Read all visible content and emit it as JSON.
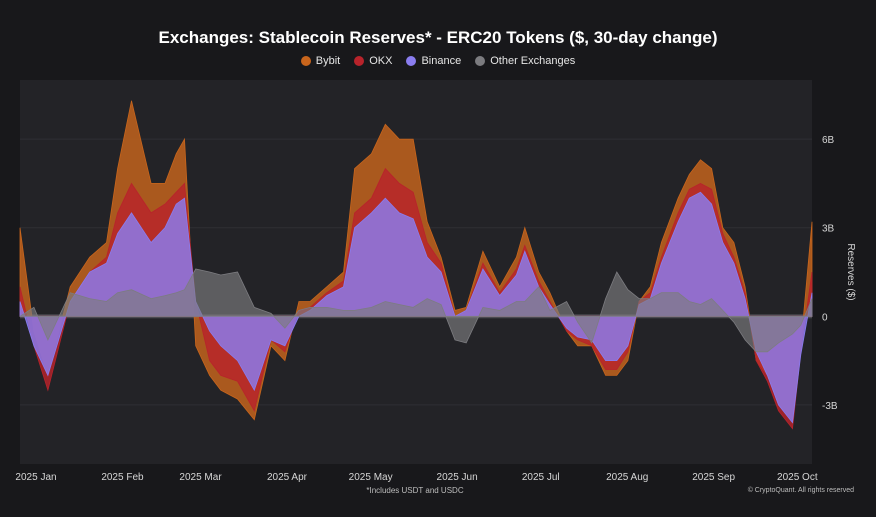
{
  "chart_data": {
    "type": "area",
    "title": "Exchanges: Stablecoin Reserves* - ERC20 Tokens ($, 30-day change)",
    "ylabel": "Reserves ($)",
    "xlabel": "",
    "ylim": [
      -5,
      8
    ],
    "y_ticks": [
      6,
      3,
      0,
      -3
    ],
    "y_tick_labels": [
      "6B",
      "3B",
      "0",
      "-3B"
    ],
    "x_ticks": [
      0,
      31,
      59,
      90,
      120,
      151,
      181,
      212,
      243,
      273
    ],
    "x_tick_labels": [
      "2025 Jan",
      "2025 Feb",
      "2025 Mar",
      "2025 Apr",
      "2025 May",
      "2025 Jun",
      "2025 Jul",
      "2025 Aug",
      "2025 Sep",
      "2025 Oct"
    ],
    "x_range": [
      0,
      284
    ],
    "x_unit": "day of 2025",
    "legend_position": "top-center",
    "footnote": "*Includes USDT and USDC",
    "copyright": "© CryptoQuant. All rights reserved",
    "series": [
      {
        "name": "Bybit",
        "color": "#c8651c",
        "x": [
          0,
          5,
          10,
          18,
          25,
          31,
          35,
          40,
          47,
          52,
          56,
          59,
          63,
          68,
          72,
          78,
          84,
          90,
          95,
          100,
          104,
          110,
          116,
          120,
          126,
          131,
          136,
          141,
          146,
          151,
          156,
          160,
          166,
          172,
          178,
          181,
          186,
          190,
          196,
          200,
          205,
          210,
          214,
          218,
          222,
          226,
          230,
          236,
          240,
          244,
          248,
          252,
          256,
          260,
          264,
          268,
          272,
          277,
          280,
          284
        ],
        "values": [
          3,
          -0.5,
          -2,
          1,
          2,
          2.5,
          5,
          7.3,
          4.5,
          4.5,
          5.5,
          6,
          -1,
          -2,
          -2.5,
          -2.8,
          -3.5,
          -1,
          -1.5,
          0.5,
          0.5,
          1,
          1.5,
          5,
          5.5,
          6.5,
          6,
          6,
          3.2,
          2,
          0.2,
          0.3,
          2.2,
          1,
          2,
          3,
          1.5,
          0.8,
          -0.5,
          -1,
          -1,
          -2,
          -2,
          -1.5,
          0.5,
          1,
          2.5,
          4,
          4.8,
          5.3,
          5,
          3,
          2.5,
          1,
          -1.5,
          -2,
          -3,
          -3.5,
          -1,
          3.2
        ]
      },
      {
        "name": "OKX",
        "color": "#b8232b",
        "x": [
          0,
          5,
          10,
          18,
          25,
          31,
          35,
          40,
          47,
          52,
          56,
          59,
          63,
          68,
          72,
          78,
          84,
          90,
          95,
          100,
          104,
          110,
          116,
          120,
          126,
          131,
          136,
          141,
          146,
          151,
          156,
          160,
          166,
          172,
          178,
          181,
          186,
          190,
          196,
          200,
          205,
          210,
          214,
          218,
          222,
          226,
          230,
          236,
          240,
          244,
          248,
          252,
          256,
          260,
          264,
          268,
          272,
          277,
          280,
          284
        ],
        "values": [
          1,
          -1,
          -2.5,
          0.5,
          1.5,
          2,
          3.5,
          4.5,
          3.5,
          3.8,
          4.2,
          4.5,
          0.5,
          -1.5,
          -2,
          -2.2,
          -3.2,
          -0.8,
          -1.2,
          0.2,
          0.3,
          0.8,
          1.2,
          3.5,
          4,
          5,
          4.5,
          4.2,
          2.5,
          1.8,
          0,
          0.2,
          1.8,
          0.8,
          1.6,
          2.4,
          1.2,
          0.5,
          -0.5,
          -0.8,
          -1,
          -1.8,
          -1.8,
          -1.2,
          0.5,
          0.8,
          2,
          3.5,
          4.3,
          4.5,
          4.3,
          2.8,
          2,
          0.8,
          -1.5,
          -2.2,
          -3.2,
          -3.8,
          -1.2,
          1.5
        ]
      },
      {
        "name": "Binance",
        "color": "#8a7df0",
        "x": [
          0,
          5,
          10,
          18,
          25,
          31,
          35,
          40,
          47,
          52,
          56,
          59,
          63,
          68,
          72,
          78,
          84,
          90,
          95,
          100,
          104,
          110,
          116,
          120,
          126,
          131,
          136,
          141,
          146,
          151,
          156,
          160,
          166,
          172,
          178,
          181,
          186,
          190,
          196,
          200,
          205,
          210,
          214,
          218,
          222,
          226,
          230,
          236,
          240,
          244,
          248,
          252,
          256,
          260,
          264,
          268,
          272,
          277,
          280,
          284
        ],
        "values": [
          0.5,
          -1,
          -2,
          0.5,
          1.5,
          1.8,
          2.8,
          3.5,
          2.5,
          3,
          3.8,
          4,
          0.5,
          -0.5,
          -1,
          -1.5,
          -2.5,
          -0.8,
          -1,
          0,
          0.2,
          0.7,
          1,
          3,
          3.5,
          4,
          3.5,
          3.3,
          2,
          1.5,
          0,
          0.2,
          1.6,
          0.7,
          1.4,
          2.2,
          1,
          0.4,
          -0.4,
          -0.7,
          -0.8,
          -1.5,
          -1.5,
          -1,
          0.4,
          0.6,
          1.8,
          3.2,
          4,
          4.2,
          3.8,
          2.5,
          1.8,
          0.6,
          -1.2,
          -2,
          -3,
          -3.6,
          -1.3,
          0.8
        ]
      },
      {
        "name": "Other Exchanges",
        "color": "#7c7c80",
        "x": [
          0,
          5,
          10,
          18,
          25,
          31,
          35,
          40,
          47,
          52,
          56,
          59,
          63,
          68,
          72,
          78,
          84,
          90,
          95,
          100,
          104,
          110,
          116,
          120,
          126,
          131,
          136,
          141,
          146,
          151,
          156,
          160,
          166,
          172,
          178,
          181,
          186,
          190,
          196,
          200,
          205,
          210,
          214,
          218,
          222,
          226,
          230,
          236,
          240,
          244,
          248,
          252,
          256,
          260,
          264,
          268,
          272,
          277,
          280,
          284
        ],
        "values": [
          0,
          0.3,
          -0.8,
          0.8,
          0.6,
          0.5,
          0.8,
          0.9,
          0.6,
          0.7,
          0.8,
          0.9,
          1.6,
          1.5,
          1.4,
          1.5,
          0.3,
          0.1,
          -0.4,
          0.2,
          0.3,
          0.3,
          0.2,
          0.2,
          0.3,
          0.5,
          0.4,
          0.3,
          0.6,
          0.4,
          -0.8,
          -0.9,
          0.3,
          0.2,
          0.5,
          0.5,
          1,
          0.2,
          0.5,
          -0.2,
          -0.9,
          0.6,
          1.5,
          0.9,
          0.6,
          0.6,
          0.8,
          0.8,
          0.5,
          0.4,
          0.6,
          0.2,
          -0.2,
          -0.8,
          -1.2,
          -1.2,
          -0.9,
          -0.6,
          -0.3,
          0.6
        ]
      }
    ]
  }
}
